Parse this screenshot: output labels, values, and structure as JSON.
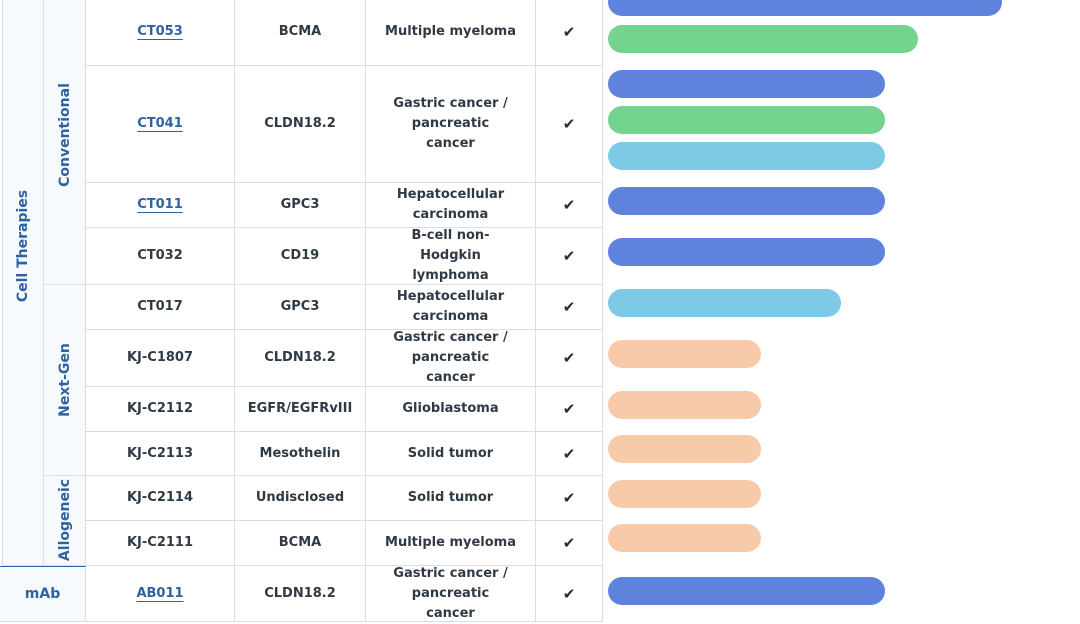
{
  "colors": {
    "blue": "#5f82dc",
    "green": "#74d38d",
    "sky": "#7ccae6",
    "peach": "#f7cbaa",
    "group_text": "#2e62a0"
  },
  "categories": {
    "cell_therapies": "Cell Therapies",
    "mab": "mAb"
  },
  "subcategories": {
    "conventional": "Conventional",
    "next_gen": "Next-Gen",
    "allogeneic": "Allogeneic"
  },
  "check_glyph": "✔",
  "rows": [
    {
      "product": "CT053",
      "target": "BCMA",
      "indication": "Multiple myeloma",
      "linked": true,
      "bars": [
        {
          "color": "blue",
          "progress": 0.98
        },
        {
          "color": "green",
          "progress": 0.77
        }
      ]
    },
    {
      "product": "CT041",
      "target": "CLDN18.2",
      "indication": "Gastric cancer / pancreatic cancer",
      "linked": true,
      "bars": [
        {
          "color": "blue",
          "progress": 0.69
        },
        {
          "color": "green",
          "progress": 0.69
        },
        {
          "color": "sky",
          "progress": 0.69
        }
      ]
    },
    {
      "product": "CT011",
      "target": "GPC3",
      "indication": "Hepatocellular carcinoma",
      "linked": true,
      "bars": [
        {
          "color": "blue",
          "progress": 0.69
        }
      ]
    },
    {
      "product": "CT032",
      "target": "CD19",
      "indication": "B-cell non-Hodgkin lymphoma",
      "linked": false,
      "bars": [
        {
          "color": "blue",
          "progress": 0.69
        }
      ]
    },
    {
      "product": "CT017",
      "target": "GPC3",
      "indication": "Hepatocellular carcinoma",
      "linked": false,
      "bars": [
        {
          "color": "sky",
          "progress": 0.58
        }
      ]
    },
    {
      "product": "KJ-C1807",
      "target": "CLDN18.2",
      "indication": "Gastric cancer / pancreatic cancer",
      "linked": false,
      "bars": [
        {
          "color": "peach",
          "progress": 0.38
        }
      ]
    },
    {
      "product": "KJ-C2112",
      "target": "EGFR/EGFRvIII",
      "indication": "Glioblastoma",
      "linked": false,
      "bars": [
        {
          "color": "peach",
          "progress": 0.38
        }
      ]
    },
    {
      "product": "KJ-C2113",
      "target": "Mesothelin",
      "indication": "Solid tumor",
      "linked": false,
      "bars": [
        {
          "color": "peach",
          "progress": 0.38
        }
      ]
    },
    {
      "product": "KJ-C2114",
      "target": "Undisclosed",
      "indication": "Solid tumor",
      "linked": false,
      "bars": [
        {
          "color": "peach",
          "progress": 0.38
        }
      ]
    },
    {
      "product": "KJ-C2111",
      "target": "BCMA",
      "indication": "Multiple myeloma",
      "linked": false,
      "bars": [
        {
          "color": "peach",
          "progress": 0.38
        }
      ]
    },
    {
      "product": "AB011",
      "target": "CLDN18.2",
      "indication": "Gastric cancer / pancreatic cancer",
      "linked": true,
      "bars": [
        {
          "color": "blue",
          "progress": 0.69
        }
      ]
    }
  ]
}
